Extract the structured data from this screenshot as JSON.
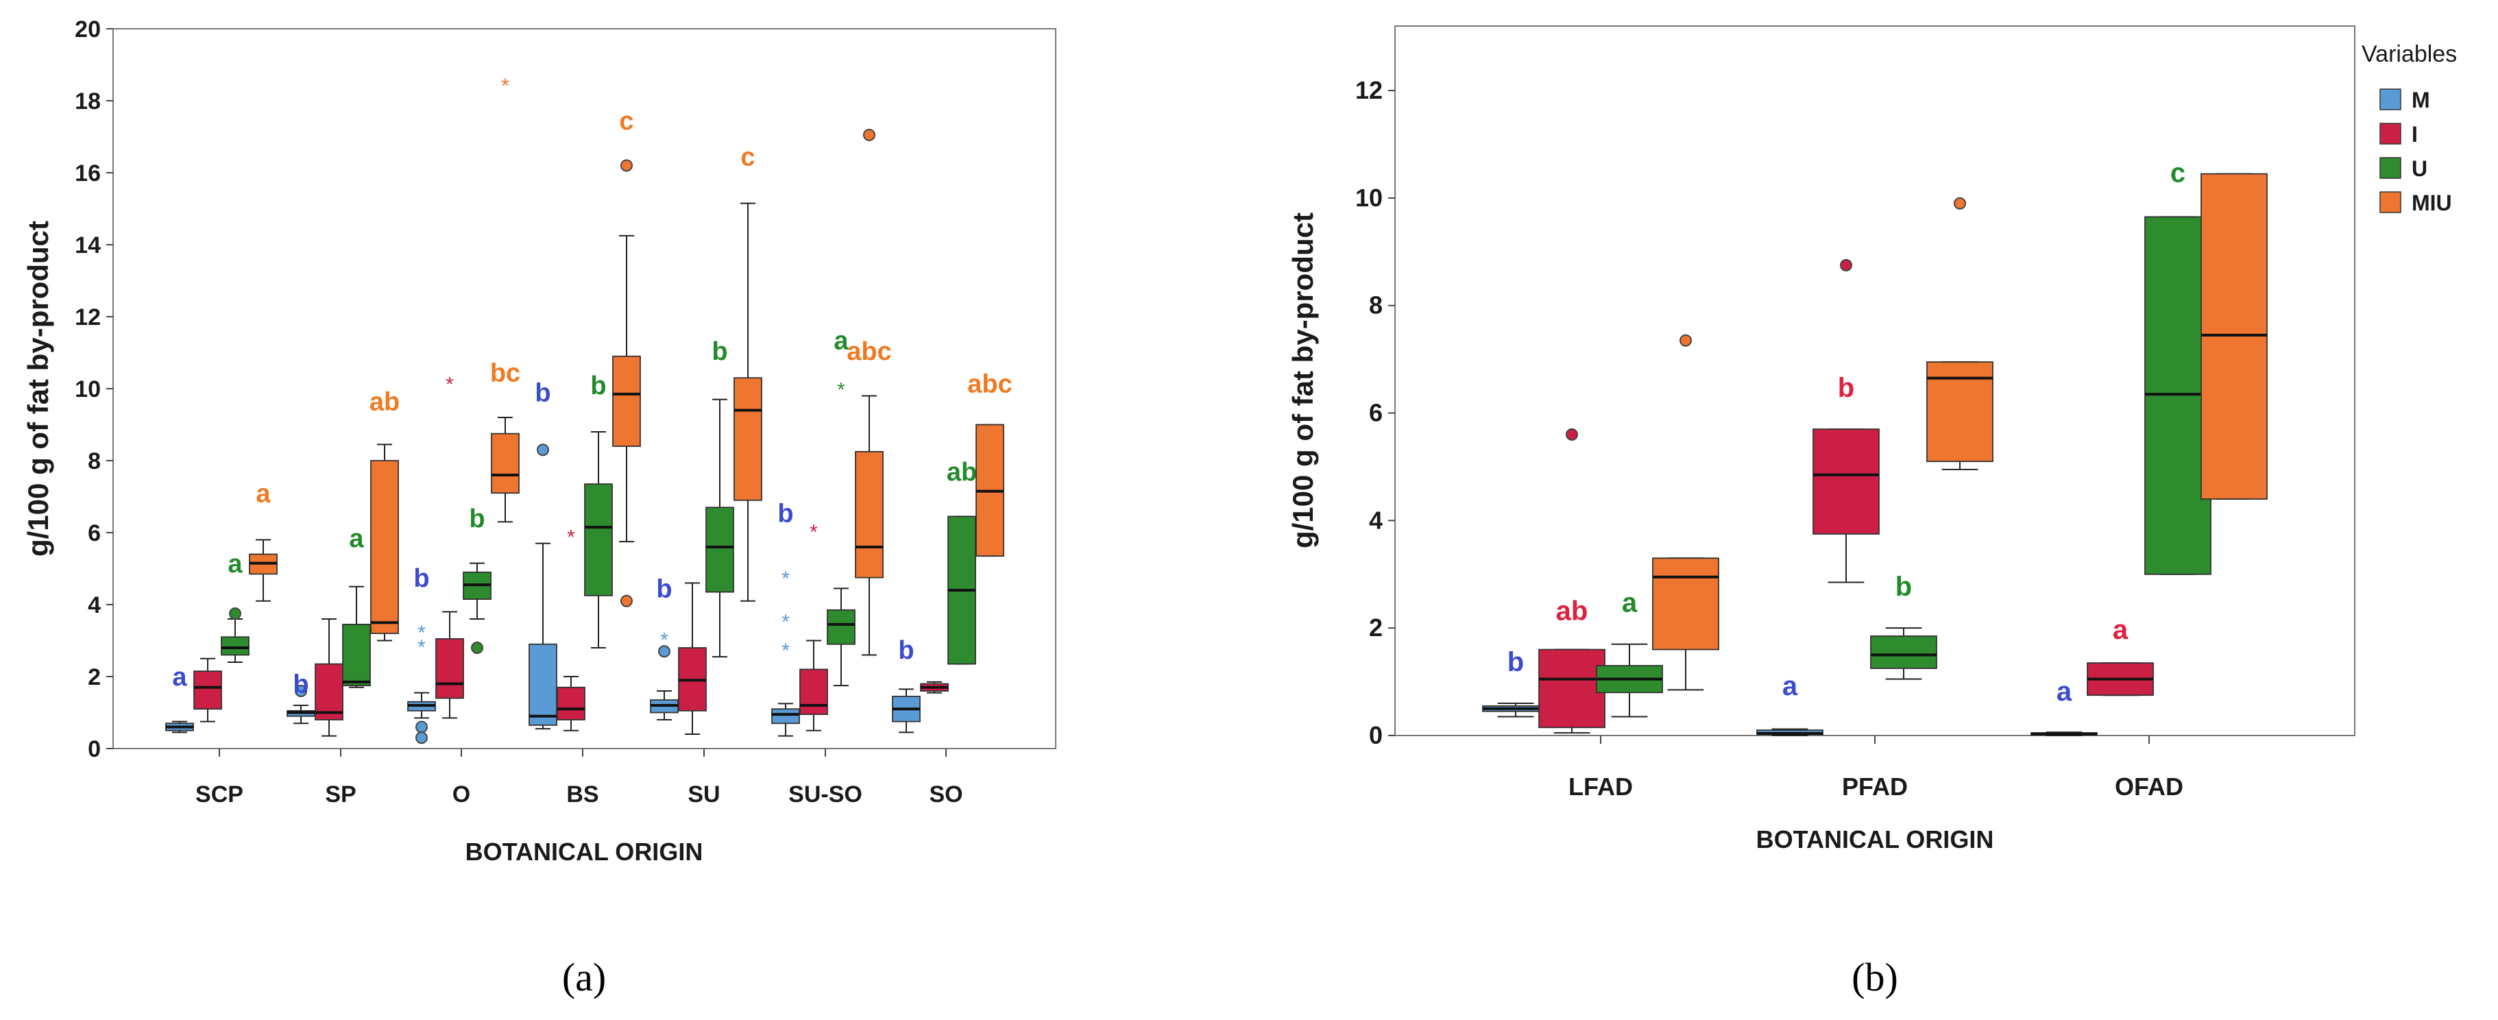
{
  "colors": {
    "M": "#5b9bd5",
    "I": "#cc1f45",
    "U": "#2e8b2e",
    "MIU": "#ef7630"
  },
  "letter_colors": {
    "M": "#3b4bd0",
    "I": "#e0203d",
    "U": "#228a2a",
    "MIU": "#f07a22"
  },
  "chart_data": [
    {
      "type": "box",
      "panel_label": "(a)",
      "ylabel": "g/100 g of fat by-product",
      "xlabel": "BOTANICAL ORIGIN",
      "ylim": [
        0,
        20
      ],
      "yticks": [
        "0",
        "2",
        "4",
        "6",
        "8",
        "10",
        "12",
        "14",
        "16",
        "18",
        "20"
      ],
      "categories": [
        "SCP",
        "SP",
        "O",
        "BS",
        "SU",
        "SU-SO",
        "SO"
      ],
      "series": [
        {
          "name": "M",
          "boxes": [
            {
              "cat": "SCP",
              "min": 0.45,
              "q1": 0.5,
              "median": 0.6,
              "q3": 0.7,
              "max": 0.75,
              "outliers": [],
              "stars": [],
              "letter": "a",
              "letter_y": 1.75
            },
            {
              "cat": "SP",
              "min": 0.7,
              "q1": 0.9,
              "median": 1.0,
              "q3": 1.05,
              "max": 1.2,
              "outliers": [
                1.6
              ],
              "stars": [],
              "letter": "b",
              "letter_y": 1.55
            },
            {
              "cat": "O",
              "min": 0.85,
              "q1": 1.05,
              "median": 1.2,
              "q3": 1.3,
              "max": 1.55,
              "outliers": [
                0.6,
                0.3
              ],
              "stars": [
                3.3,
                2.9
              ],
              "letter": "b",
              "letter_y": 4.5
            },
            {
              "cat": "BS",
              "min": 0.55,
              "q1": 0.65,
              "median": 0.9,
              "q3": 2.9,
              "max": 5.7,
              "outliers": [
                8.3
              ],
              "stars": [],
              "letter": "b",
              "letter_y": 9.65
            },
            {
              "cat": "SU",
              "min": 0.8,
              "q1": 1.0,
              "median": 1.2,
              "q3": 1.35,
              "max": 1.6,
              "outliers": [
                2.7
              ],
              "stars": [
                3.1
              ],
              "letter": "b",
              "letter_y": 4.2
            },
            {
              "cat": "SU-SO",
              "min": 0.35,
              "q1": 0.7,
              "median": 0.95,
              "q3": 1.1,
              "max": 1.25,
              "outliers": [],
              "stars": [
                4.8,
                3.6,
                2.8
              ],
              "letter": "b",
              "letter_y": 6.3
            },
            {
              "cat": "SO",
              "min": 0.45,
              "q1": 0.75,
              "median": 1.1,
              "q3": 1.45,
              "max": 1.65,
              "outliers": [],
              "stars": [],
              "letter": "b",
              "letter_y": 2.5
            }
          ]
        },
        {
          "name": "I",
          "boxes": [
            {
              "cat": "SCP",
              "min": 0.75,
              "q1": 1.1,
              "median": 1.7,
              "q3": 2.15,
              "max": 2.5,
              "outliers": [],
              "stars": [],
              "letter": "",
              "letter_y": 0
            },
            {
              "cat": "SP",
              "min": 0.35,
              "q1": 0.8,
              "median": 1.0,
              "q3": 2.35,
              "max": 3.6,
              "outliers": [],
              "stars": [],
              "letter": "",
              "letter_y": 0
            },
            {
              "cat": "O",
              "min": 0.85,
              "q1": 1.4,
              "median": 1.8,
              "q3": 3.05,
              "max": 3.8,
              "outliers": [],
              "stars": [
                10.2
              ],
              "letter": "",
              "letter_y": 0
            },
            {
              "cat": "BS",
              "min": 0.5,
              "q1": 0.8,
              "median": 1.1,
              "q3": 1.7,
              "max": 2.0,
              "outliers": [],
              "stars": [
                5.95
              ],
              "letter": "",
              "letter_y": 0
            },
            {
              "cat": "SU",
              "min": 0.4,
              "q1": 1.05,
              "median": 1.9,
              "q3": 2.8,
              "max": 4.6,
              "outliers": [],
              "stars": [],
              "letter": "",
              "letter_y": 0
            },
            {
              "cat": "SU-SO",
              "min": 0.5,
              "q1": 0.95,
              "median": 1.2,
              "q3": 2.2,
              "max": 3.0,
              "outliers": [],
              "stars": [
                6.1
              ],
              "letter": "",
              "letter_y": 0
            },
            {
              "cat": "SO",
              "min": 1.55,
              "q1": 1.6,
              "median": 1.7,
              "q3": 1.8,
              "max": 1.85,
              "outliers": [],
              "stars": [],
              "letter": "",
              "letter_y": 0
            }
          ]
        },
        {
          "name": "U",
          "boxes": [
            {
              "cat": "SCP",
              "min": 2.4,
              "q1": 2.6,
              "median": 2.8,
              "q3": 3.1,
              "max": 3.6,
              "outliers": [
                3.75
              ],
              "stars": [],
              "letter": "a",
              "letter_y": 4.9
            },
            {
              "cat": "SP",
              "min": 1.7,
              "q1": 1.75,
              "median": 1.85,
              "q3": 3.45,
              "max": 4.5,
              "outliers": [],
              "stars": [],
              "letter": "a",
              "letter_y": 5.6
            },
            {
              "cat": "O",
              "min": 3.6,
              "q1": 4.15,
              "median": 4.55,
              "q3": 4.9,
              "max": 5.15,
              "outliers": [
                2.8
              ],
              "stars": [],
              "letter": "b",
              "letter_y": 6.15
            },
            {
              "cat": "BS",
              "min": 2.8,
              "q1": 4.25,
              "median": 6.15,
              "q3": 7.35,
              "max": 8.8,
              "outliers": [],
              "stars": [],
              "letter": "b",
              "letter_y": 9.85
            },
            {
              "cat": "SU",
              "min": 2.55,
              "q1": 4.35,
              "median": 5.6,
              "q3": 6.7,
              "max": 9.7,
              "outliers": [],
              "stars": [],
              "letter": "b",
              "letter_y": 10.8
            },
            {
              "cat": "SU-SO",
              "min": 1.75,
              "q1": 2.9,
              "median": 3.45,
              "q3": 3.85,
              "max": 4.45,
              "outliers": [],
              "stars": [
                10.05
              ],
              "letter": "a",
              "letter_y": 11.1
            },
            {
              "cat": "SO",
              "min": 2.35,
              "q1": 2.35,
              "median": 4.4,
              "q3": 6.45,
              "max": 6.45,
              "outliers": [],
              "stars": [],
              "letter": "ab",
              "letter_y": 7.45
            }
          ]
        },
        {
          "name": "MIU",
          "boxes": [
            {
              "cat": "SCP",
              "min": 4.1,
              "q1": 4.85,
              "median": 5.15,
              "q3": 5.4,
              "max": 5.8,
              "outliers": [],
              "stars": [],
              "letter": "a",
              "letter_y": 6.85
            },
            {
              "cat": "SP",
              "min": 3.0,
              "q1": 3.2,
              "median": 3.5,
              "q3": 8.0,
              "max": 8.45,
              "outliers": [],
              "stars": [],
              "letter": "ab",
              "letter_y": 9.4
            },
            {
              "cat": "O",
              "min": 6.3,
              "q1": 7.1,
              "median": 7.6,
              "q3": 8.75,
              "max": 9.2,
              "outliers": [],
              "stars": [
                18.5
              ],
              "letter": "bc",
              "letter_y": 10.2
            },
            {
              "cat": "BS",
              "min": 5.75,
              "q1": 8.4,
              "median": 9.85,
              "q3": 10.9,
              "max": 14.25,
              "outliers": [
                16.2,
                4.1
              ],
              "stars": [],
              "letter": "c",
              "letter_y": 17.2
            },
            {
              "cat": "SU",
              "min": 4.1,
              "q1": 6.9,
              "median": 9.4,
              "q3": 10.3,
              "max": 15.15,
              "outliers": [],
              "stars": [],
              "letter": "c",
              "letter_y": 16.2
            },
            {
              "cat": "SU-SO",
              "min": 2.6,
              "q1": 4.75,
              "median": 5.6,
              "q3": 8.25,
              "max": 9.8,
              "outliers": [
                17.05
              ],
              "stars": [],
              "letter": "abc",
              "letter_y": 10.8
            },
            {
              "cat": "SO",
              "min": 5.35,
              "q1": 5.35,
              "median": 7.15,
              "q3": 9.0,
              "max": 9.0,
              "outliers": [],
              "stars": [],
              "letter": "abc",
              "letter_y": 9.9
            }
          ]
        }
      ]
    },
    {
      "type": "box",
      "panel_label": "(b)",
      "ylabel": "g/100 g of fat by-product",
      "xlabel": "BOTANICAL ORIGIN",
      "ylim": [
        0,
        13.2
      ],
      "yticks": [
        "0",
        "2",
        "4",
        "6",
        "8",
        "10",
        "12"
      ],
      "categories": [
        "LFAD",
        "PFAD",
        "OFAD"
      ],
      "legend": {
        "title": "Variables",
        "items": [
          "M",
          "I",
          "U",
          "MIU"
        ],
        "position": "right"
      },
      "series": [
        {
          "name": "M",
          "boxes": [
            {
              "cat": "LFAD",
              "min": 0.35,
              "q1": 0.45,
              "median": 0.5,
              "q3": 0.55,
              "max": 0.6,
              "outliers": [],
              "stars": [],
              "letter": "b",
              "letter_y": 1.2
            },
            {
              "cat": "PFAD",
              "min": 0.0,
              "q1": 0.02,
              "median": 0.04,
              "q3": 0.1,
              "max": 0.12,
              "outliers": [],
              "stars": [],
              "letter": "a",
              "letter_y": 0.75
            },
            {
              "cat": "OFAD",
              "min": 0.0,
              "q1": 0.01,
              "median": 0.03,
              "q3": 0.05,
              "max": 0.06,
              "outliers": [],
              "stars": [],
              "letter": "a",
              "letter_y": 0.65
            }
          ]
        },
        {
          "name": "I",
          "boxes": [
            {
              "cat": "LFAD",
              "min": 0.05,
              "q1": 0.15,
              "median": 1.05,
              "q3": 1.6,
              "max": 1.6,
              "outliers": [
                5.6
              ],
              "stars": [],
              "letter": "ab",
              "letter_y": 2.15
            },
            {
              "cat": "PFAD",
              "min": 2.85,
              "q1": 3.75,
              "median": 4.85,
              "q3": 5.7,
              "max": 5.7,
              "outliers": [
                8.75
              ],
              "stars": [],
              "letter": "b",
              "letter_y": 6.3
            },
            {
              "cat": "OFAD",
              "min": 0.75,
              "q1": 0.75,
              "median": 1.05,
              "q3": 1.35,
              "max": 1.35,
              "outliers": [],
              "stars": [],
              "letter": "a",
              "letter_y": 1.8
            }
          ]
        },
        {
          "name": "U",
          "boxes": [
            {
              "cat": "LFAD",
              "min": 0.35,
              "q1": 0.8,
              "median": 1.05,
              "q3": 1.3,
              "max": 1.7,
              "outliers": [],
              "stars": [],
              "letter": "a",
              "letter_y": 2.3
            },
            {
              "cat": "PFAD",
              "min": 1.05,
              "q1": 1.25,
              "median": 1.5,
              "q3": 1.85,
              "max": 2.0,
              "outliers": [],
              "stars": [],
              "letter": "b",
              "letter_y": 2.6
            },
            {
              "cat": "OFAD",
              "min": 3.0,
              "q1": 3.0,
              "median": 6.35,
              "q3": 9.65,
              "max": 9.65,
              "outliers": [],
              "stars": [],
              "letter": "c",
              "letter_y": 10.3
            }
          ]
        },
        {
          "name": "MIU",
          "boxes": [
            {
              "cat": "LFAD",
              "min": 0.85,
              "q1": 1.6,
              "median": 2.95,
              "q3": 3.3,
              "max": 3.3,
              "outliers": [
                7.35
              ],
              "stars": [],
              "letter": "",
              "letter_y": 0
            },
            {
              "cat": "PFAD",
              "min": 4.95,
              "q1": 5.1,
              "median": 6.65,
              "q3": 6.95,
              "max": 6.95,
              "outliers": [
                9.9
              ],
              "stars": [],
              "letter": "",
              "letter_y": 0
            },
            {
              "cat": "OFAD",
              "min": 4.4,
              "q1": 4.4,
              "median": 7.45,
              "q3": 10.45,
              "max": 10.45,
              "outliers": [],
              "stars": [],
              "letter": "",
              "letter_y": 0
            }
          ]
        }
      ]
    }
  ]
}
